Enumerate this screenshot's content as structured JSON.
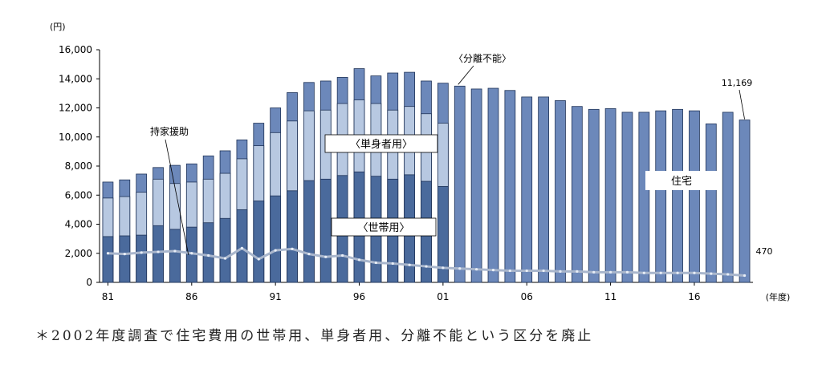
{
  "chart_data": {
    "type": "bar",
    "unit_label": "(円)",
    "x_unit_label": "(年度)",
    "x": [
      1981,
      1982,
      1983,
      1984,
      1985,
      1986,
      1987,
      1988,
      1989,
      1990,
      1991,
      1992,
      1993,
      1994,
      1995,
      1996,
      1997,
      1998,
      1999,
      2000,
      2001,
      2002,
      2003,
      2004,
      2005,
      2006,
      2007,
      2008,
      2009,
      2010,
      2011,
      2012,
      2013,
      2014,
      2015,
      2016,
      2017,
      2018,
      2019
    ],
    "x_tick_labels": [
      "81",
      "86",
      "91",
      "96",
      "01",
      "06",
      "11",
      "16"
    ],
    "x_tick_years": [
      1981,
      1986,
      1991,
      1996,
      2001,
      2006,
      2011,
      2016
    ],
    "ylim": [
      0,
      16000
    ],
    "y_ticks": [
      0,
      2000,
      4000,
      6000,
      8000,
      10000,
      12000,
      14000,
      16000
    ],
    "y_tick_labels": [
      "0",
      "2,000",
      "4,000",
      "6,000",
      "8,000",
      "10,000",
      "12,000",
      "14,000",
      "16,000"
    ],
    "grid": false,
    "series": [
      {
        "name": "世帯用",
        "color": "#4a6a9c",
        "values": [
          3150,
          3200,
          3250,
          3900,
          3650,
          3800,
          4100,
          4400,
          5000,
          5600,
          5950,
          6300,
          7000,
          7100,
          7350,
          7600,
          7300,
          7100,
          7400,
          6950,
          6600,
          null,
          null,
          null,
          null,
          null,
          null,
          null,
          null,
          null,
          null,
          null,
          null,
          null,
          null,
          null,
          null,
          null,
          null
        ]
      },
      {
        "name": "単身者用",
        "color": "#b7c8e1",
        "values": [
          5800,
          5900,
          6200,
          7100,
          6800,
          6900,
          7100,
          7500,
          8500,
          9400,
          10300,
          11100,
          11800,
          11850,
          12300,
          12550,
          12300,
          11850,
          12100,
          11600,
          10950,
          null,
          null,
          null,
          null,
          null,
          null,
          null,
          null,
          null,
          null,
          null,
          null,
          null,
          null,
          null,
          null,
          null,
          null
        ]
      },
      {
        "name": "分離不能",
        "color": "#6c88ba",
        "values": [
          6900,
          7050,
          7450,
          7900,
          8050,
          8150,
          8700,
          9050,
          9800,
          10950,
          12000,
          13050,
          13750,
          13850,
          14100,
          14700,
          14200,
          14400,
          14450,
          13850,
          13700,
          13500,
          13300,
          13350,
          13200,
          12750,
          12750,
          12500,
          12100,
          11900,
          11950,
          11700,
          11700,
          11800,
          11900,
          11800,
          10900,
          11700,
          11169
        ]
      },
      {
        "name": "持家援助",
        "color": "#a9b6cc",
        "values": [
          2000,
          1950,
          2050,
          2100,
          2150,
          2000,
          1850,
          1650,
          2350,
          1600,
          2200,
          2300,
          1950,
          1750,
          1850,
          1550,
          1350,
          1300,
          1200,
          1100,
          1000,
          950,
          900,
          850,
          800,
          800,
          800,
          750,
          750,
          700,
          700,
          700,
          650,
          650,
          650,
          650,
          600,
          550,
          470
        ]
      }
    ],
    "labels": {
      "split_label": "〈分離不能〉",
      "single_label": "〈単身者用〉",
      "household_label": "〈世帯用〉",
      "housing_label": "住宅",
      "ownhome_label": "持家援助",
      "last_total_label": "11,169",
      "last_line_label": "470"
    }
  },
  "footnote": "＊2002年度調査で住宅費用の世帯用、単身者用、分離不能という区分を廃止"
}
